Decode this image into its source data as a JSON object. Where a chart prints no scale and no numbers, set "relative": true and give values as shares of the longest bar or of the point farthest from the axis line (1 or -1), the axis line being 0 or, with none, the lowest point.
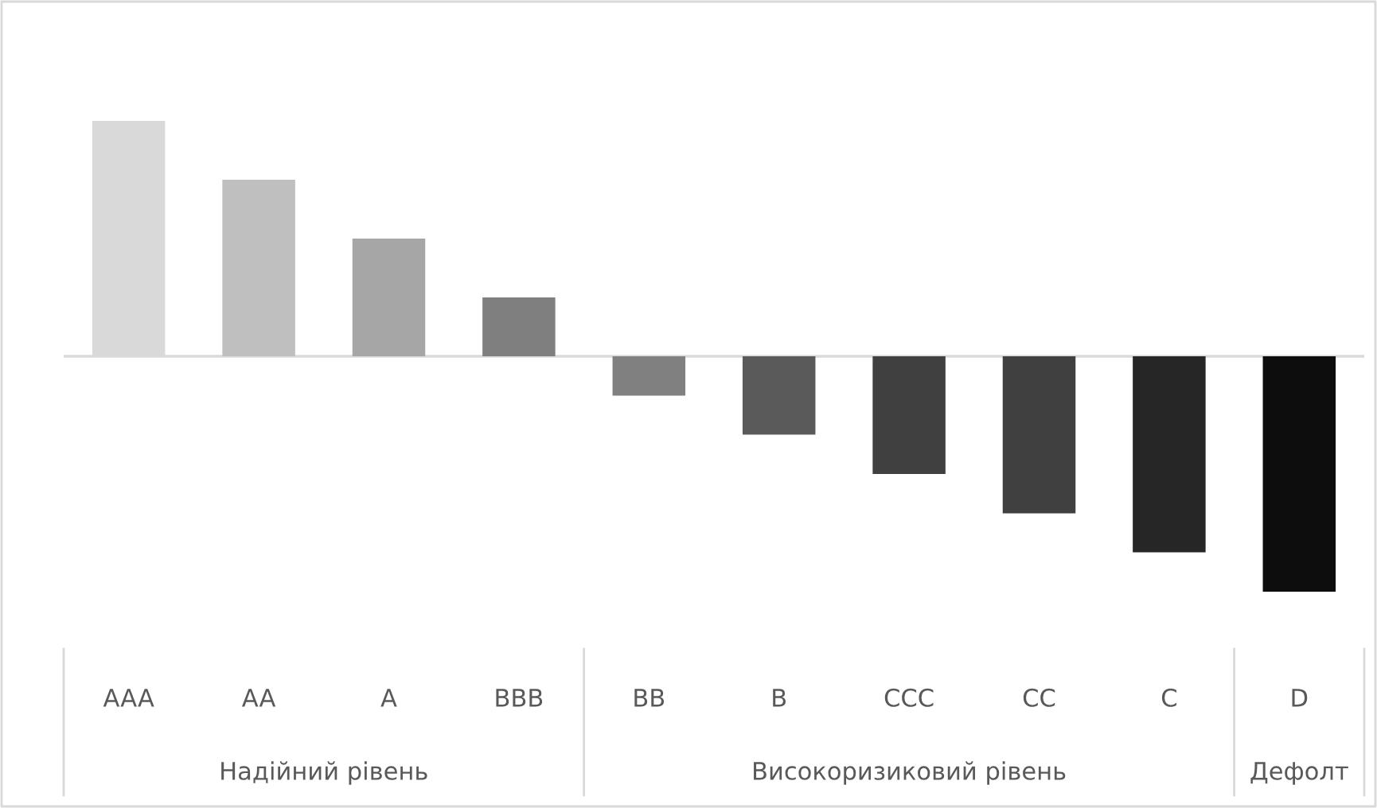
{
  "chart_data": {
    "type": "bar",
    "relative": true,
    "categories": [
      "AAA",
      "AA",
      "A",
      "BBB",
      "BB",
      "B",
      "CCC",
      "CC",
      "C",
      "D"
    ],
    "values": [
      1,
      0.75,
      0.5,
      0.25,
      -0.167,
      -0.333,
      -0.5,
      -0.667,
      -0.833,
      -1
    ],
    "colors": [
      "#d9d9d9",
      "#bfbfbf",
      "#a6a6a6",
      "#7f7f7f",
      "#808080",
      "#5a5a5a",
      "#404040",
      "#404040",
      "#262626",
      "#0d0d0d"
    ],
    "annotations": [
      "Надійний рівень",
      "Високоризиковий рівень",
      "Дефолт"
    ]
  }
}
